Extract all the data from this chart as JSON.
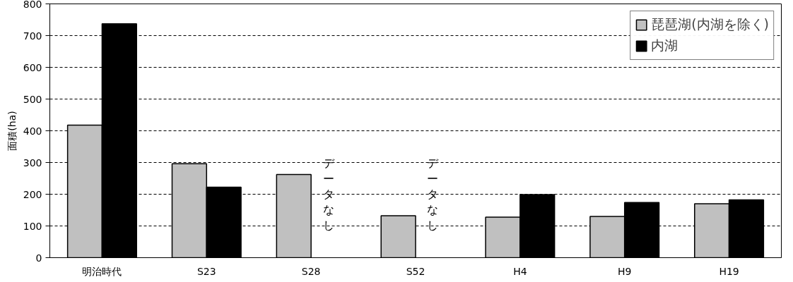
{
  "chart_data": {
    "type": "bar",
    "ylabel": "面積(ha)",
    "categories": [
      "明治時代",
      "S23",
      "S28",
      "S52",
      "H4",
      "H9",
      "H19"
    ],
    "series": [
      {
        "name": "琵琶湖(内湖を除く)",
        "color": "#c0c0c0",
        "values": [
          418,
          296,
          262,
          132,
          128,
          130,
          170
        ]
      },
      {
        "name": "内湖",
        "color": "#000000",
        "values": [
          737,
          222,
          null,
          null,
          199,
          174,
          182
        ]
      }
    ],
    "ylim": [
      0,
      800
    ],
    "yticks": [
      0,
      100,
      200,
      300,
      400,
      500,
      600,
      700,
      800
    ],
    "grid": "y",
    "legend": "top right",
    "annotations": [
      "データなし",
      "データなし"
    ]
  }
}
